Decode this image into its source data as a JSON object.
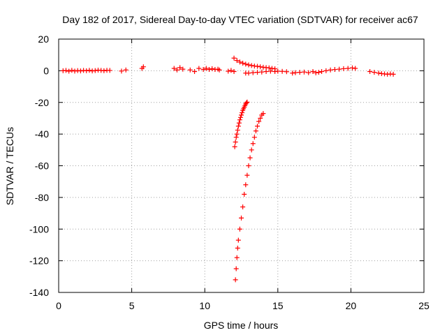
{
  "chart_data": {
    "type": "scatter",
    "title": "Day 182 of 2017, Sidereal Day-to-day VTEC variation (SDTVAR) for receiver ac67",
    "xlabel": "GPS time / hours",
    "ylabel": "SDTVAR / TECUs",
    "xlim": [
      0,
      25
    ],
    "ylim": [
      -140,
      20
    ],
    "xticks": [
      "0",
      "5",
      "10",
      "15",
      "20",
      "25"
    ],
    "yticks": [
      "20",
      "0",
      "-20",
      "-40",
      "-60",
      "-80",
      "-100",
      "-120",
      "-140"
    ],
    "grid": true,
    "marker_color": "#ff0000",
    "marker": "plus",
    "series": [
      {
        "x": [
          0.3,
          0.5,
          0.7,
          0.9,
          1.1,
          1.3,
          1.5,
          1.7,
          1.9,
          2.1,
          2.3,
          2.5,
          2.7,
          2.9,
          3.1,
          3.3,
          3.5,
          4.3,
          4.6,
          5.7,
          5.8,
          7.9,
          8.1,
          8.3,
          8.5,
          9.0,
          9.3,
          9.6,
          9.9,
          10.1,
          10.3,
          10.5,
          10.7,
          10.9,
          11.0,
          11.6,
          11.8,
          12.0
        ],
        "y": [
          0,
          0.2,
          -0.3,
          0.3,
          -0.2,
          0.1,
          -0.1,
          0.2,
          0,
          0.3,
          -0.1,
          0.1,
          0.4,
          0.2,
          0,
          0.3,
          0.2,
          -0.2,
          0.5,
          1.5,
          2.5,
          1.5,
          0.5,
          2,
          1,
          0.5,
          -0.5,
          1.5,
          0.8,
          1.5,
          0.8,
          1.3,
          0.8,
          1,
          0.5,
          -0.3,
          0.2,
          -0.5
        ]
      },
      {
        "x": [
          12.0,
          12.2,
          12.4,
          12.6,
          12.8,
          13.0,
          13.2,
          13.4,
          13.6,
          13.8,
          14.0,
          14.2,
          14.4,
          14.6,
          14.8
        ],
        "y": [
          8,
          6.5,
          5.5,
          4.8,
          4.2,
          3.7,
          3.3,
          3.0,
          2.8,
          2.5,
          2.2,
          2.0,
          1.8,
          1.5,
          1.2
        ]
      },
      {
        "x": [
          12.8,
          13.0,
          13.3,
          13.6,
          13.9,
          14.2,
          14.5,
          14.8,
          15.0,
          15.3,
          15.6,
          16.0,
          16.2,
          16.5,
          16.8,
          17.1,
          17.4,
          17.6,
          17.8,
          18.0,
          18.3,
          18.6,
          18.9,
          19.2,
          19.5,
          19.8,
          20.1,
          20.3,
          21.3,
          21.6,
          21.9,
          22.1,
          22.3,
          22.5,
          22.7,
          22.9
        ],
        "y": [
          -1.5,
          -1.5,
          -1.2,
          -1,
          -0.8,
          -0.5,
          -0.3,
          -0.5,
          -0.3,
          -0.4,
          -0.6,
          -1.5,
          -1.2,
          -1,
          -0.8,
          -1.2,
          -0.5,
          -1.3,
          -1,
          -0.5,
          0,
          0.5,
          0.8,
          1,
          1.3,
          1.5,
          1.8,
          1.5,
          -0.5,
          -1,
          -1.5,
          -1.8,
          -2,
          -2.2,
          -2,
          -2.2
        ]
      },
      {
        "x": [
          12.05,
          12.1,
          12.15,
          12.2,
          12.25,
          12.3,
          12.35,
          12.4,
          12.45,
          12.5,
          12.55,
          12.6,
          12.65,
          12.7,
          12.75,
          12.8,
          12.85,
          12.9
        ],
        "y": [
          -48,
          -45,
          -42,
          -40,
          -37.5,
          -35,
          -33,
          -31,
          -29.5,
          -28,
          -26.5,
          -25,
          -24,
          -23,
          -22,
          -21,
          -20.3,
          -19.8
        ]
      },
      {
        "x": [
          12.1,
          12.15,
          12.2,
          12.25,
          12.3,
          12.4,
          12.5,
          12.6,
          12.7,
          12.8,
          12.9,
          13.0,
          13.1,
          13.2,
          13.3,
          13.4,
          13.5,
          13.6,
          13.7,
          13.8,
          13.9,
          14.0
        ],
        "y": [
          -132,
          -125,
          -118,
          -112,
          -107,
          -100,
          -93,
          -86,
          -78,
          -72,
          -66,
          -60,
          -55,
          -50,
          -46,
          -42,
          -38,
          -35,
          -32,
          -30,
          -28,
          -27
        ]
      }
    ]
  }
}
